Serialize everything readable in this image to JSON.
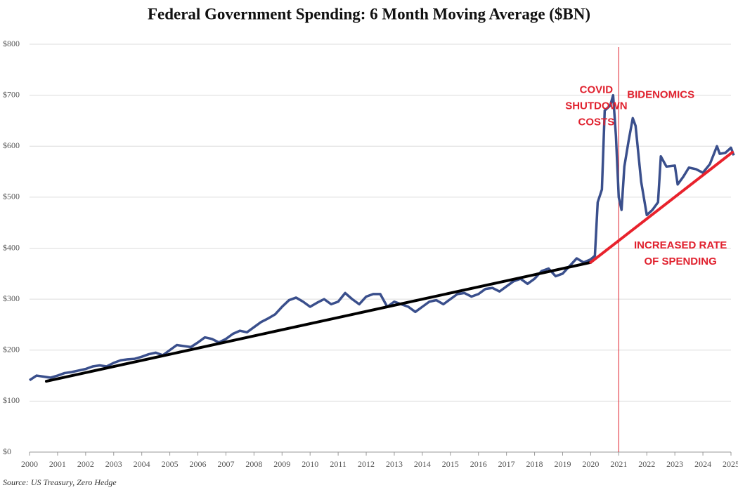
{
  "chart_data": {
    "type": "line",
    "title": "Federal Government Spending: 6 Month Moving Average ($BN)",
    "source": "Source: US Treasury, Zero Hedge",
    "x": [
      2000.0,
      2000.25,
      2000.5,
      2000.75,
      2001.0,
      2001.25,
      2001.5,
      2001.75,
      2002.0,
      2002.25,
      2002.5,
      2002.75,
      2003.0,
      2003.25,
      2003.5,
      2003.75,
      2004.0,
      2004.25,
      2004.5,
      2004.75,
      2005.0,
      2005.25,
      2005.5,
      2005.75,
      2006.0,
      2006.25,
      2006.5,
      2006.75,
      2007.0,
      2007.25,
      2007.5,
      2007.75,
      2008.0,
      2008.25,
      2008.5,
      2008.75,
      2009.0,
      2009.25,
      2009.5,
      2009.75,
      2010.0,
      2010.25,
      2010.5,
      2010.75,
      2011.0,
      2011.25,
      2011.5,
      2011.75,
      2012.0,
      2012.25,
      2012.5,
      2012.75,
      2013.0,
      2013.25,
      2013.5,
      2013.75,
      2014.0,
      2014.25,
      2014.5,
      2014.75,
      2015.0,
      2015.25,
      2015.5,
      2015.75,
      2016.0,
      2016.25,
      2016.5,
      2016.75,
      2017.0,
      2017.25,
      2017.5,
      2017.75,
      2018.0,
      2018.25,
      2018.5,
      2018.75,
      2019.0,
      2019.25,
      2019.5,
      2019.75,
      2020.0,
      2020.15,
      2020.25,
      2020.4,
      2020.5,
      2020.7,
      2020.8,
      2020.9,
      2021.0,
      2021.1,
      2021.2,
      2021.35,
      2021.5,
      2021.6,
      2021.8,
      2022.0,
      2022.2,
      2022.4,
      2022.5,
      2022.7,
      2023.0,
      2023.1,
      2023.3,
      2023.5,
      2023.75,
      2024.0,
      2024.25,
      2024.5,
      2024.6,
      2024.8,
      2025.0,
      2025.1
    ],
    "series": [
      {
        "color": "#3a4f8c",
        "values": [
          141,
          150,
          148,
          146,
          150,
          155,
          157,
          160,
          163,
          168,
          170,
          168,
          175,
          180,
          182,
          183,
          187,
          192,
          195,
          190,
          200,
          210,
          208,
          206,
          215,
          225,
          222,
          215,
          222,
          232,
          238,
          235,
          245,
          255,
          262,
          270,
          285,
          298,
          303,
          295,
          285,
          293,
          300,
          290,
          295,
          312,
          300,
          290,
          305,
          310,
          310,
          285,
          295,
          290,
          285,
          275,
          285,
          295,
          298,
          290,
          300,
          310,
          312,
          305,
          310,
          320,
          322,
          315,
          325,
          335,
          340,
          330,
          340,
          355,
          360,
          345,
          350,
          365,
          380,
          372,
          378,
          385,
          490,
          515,
          670,
          680,
          700,
          620,
          500,
          475,
          560,
          610,
          655,
          640,
          530,
          465,
          475,
          490,
          580,
          560,
          562,
          525,
          540,
          558,
          555,
          548,
          565,
          600,
          585,
          587,
          597,
          582
        ]
      }
    ],
    "trend_lines": [
      {
        "color": "#000000",
        "x": [
          2000.6,
          2020.0
        ],
        "values": [
          139,
          372
        ]
      },
      {
        "color": "#e8222c",
        "x": [
          2020.0,
          2025.05
        ],
        "values": [
          372,
          588
        ]
      }
    ],
    "vline": {
      "x": 2021.0,
      "color": "#e0212e"
    },
    "annotations": [
      {
        "lines": [
          "COVID",
          "SHUTDOWN",
          "COSTS"
        ],
        "x": 2020.2,
        "y": 710
      },
      {
        "lines": [
          "BIDENOMICS"
        ],
        "x": 2022.5,
        "y": 700
      },
      {
        "lines": [
          "INCREASED RATE",
          "OF SPENDING"
        ],
        "x": 2023.2,
        "y": 405
      }
    ],
    "xlim": [
      2000,
      2025
    ],
    "xticks": [
      2000,
      2001,
      2002,
      2003,
      2004,
      2005,
      2006,
      2007,
      2008,
      2009,
      2010,
      2011,
      2012,
      2013,
      2014,
      2015,
      2016,
      2017,
      2018,
      2019,
      2020,
      2021,
      2022,
      2023,
      2024,
      2025
    ],
    "ylim": [
      0,
      800
    ],
    "yticks": [
      {
        "value": 0,
        "label": "$0"
      },
      {
        "value": 100,
        "label": "$100"
      },
      {
        "value": 200,
        "label": "$200"
      },
      {
        "value": 300,
        "label": "$300"
      },
      {
        "value": 400,
        "label": "$400"
      },
      {
        "value": 500,
        "label": "$500"
      },
      {
        "value": 600,
        "label": "$600"
      },
      {
        "value": 700,
        "label": "$700"
      },
      {
        "value": 800,
        "label": "$800"
      }
    ],
    "grid": true
  }
}
